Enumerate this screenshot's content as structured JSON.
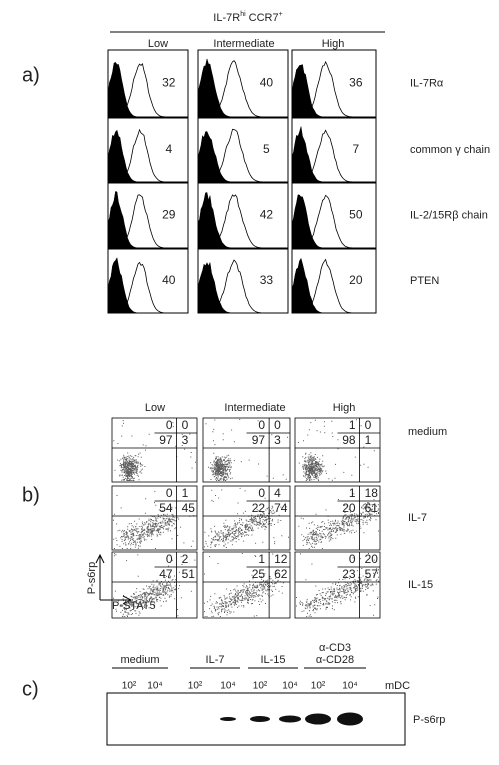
{
  "panel_a": {
    "label": "a)",
    "header": {
      "main": "IL-7R",
      "sup": "hi",
      "second": "CCR7",
      "sup2": "+"
    },
    "columns": [
      "Low",
      "Intermediate",
      "High"
    ],
    "rows": [
      {
        "label": "IL-7Rα",
        "values": [
          32,
          40,
          36
        ]
      },
      {
        "label": "common γ chain",
        "values": [
          4,
          5,
          7
        ]
      },
      {
        "label": "IL-2/15Rβ chain",
        "values": [
          29,
          42,
          50
        ]
      },
      {
        "label": "PTEN",
        "values": [
          40,
          33,
          20
        ]
      }
    ]
  },
  "panel_b": {
    "label": "b)",
    "columns": [
      "Low",
      "Intermediate",
      "High"
    ],
    "y_axis": "P-s6rp",
    "x_axis": "P-STAT5",
    "rows": [
      {
        "label": "medium",
        "quadrants": [
          [
            [
              0,
              0
            ],
            [
              97,
              3
            ]
          ],
          [
            [
              0,
              0
            ],
            [
              97,
              3
            ]
          ],
          [
            [
              1,
              0
            ],
            [
              98,
              1
            ]
          ]
        ]
      },
      {
        "label": "IL-7",
        "quadrants": [
          [
            [
              0,
              1
            ],
            [
              54,
              45
            ]
          ],
          [
            [
              0,
              4
            ],
            [
              22,
              74
            ]
          ],
          [
            [
              1,
              18
            ],
            [
              20,
              61
            ]
          ]
        ]
      },
      {
        "label": "IL-15",
        "quadrants": [
          [
            [
              0,
              2
            ],
            [
              47,
              51
            ]
          ],
          [
            [
              1,
              12
            ],
            [
              25,
              62
            ]
          ],
          [
            [
              0,
              20
            ],
            [
              23,
              57
            ]
          ]
        ]
      }
    ]
  },
  "panel_c": {
    "label": "c)",
    "groups": [
      {
        "lines": [
          "medium"
        ]
      },
      {
        "lines": [
          "IL-7"
        ]
      },
      {
        "lines": [
          "IL-15"
        ]
      },
      {
        "lines": [
          "α-CD3",
          "α-CD28"
        ]
      }
    ],
    "doses": [
      "10²",
      "10⁴",
      "10²",
      "10⁴",
      "10²",
      "10⁴",
      "10²",
      "10⁴"
    ],
    "dose_label": "mDC",
    "band_label": "P-s6rp"
  }
}
